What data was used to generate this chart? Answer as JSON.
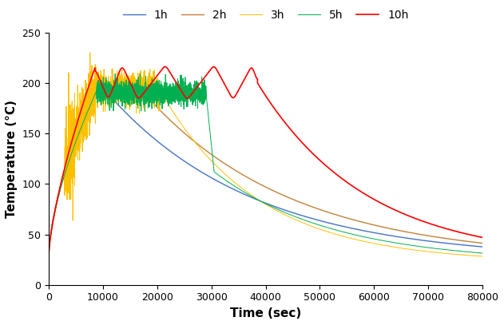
{
  "title": "",
  "xlabel": "Time (sec)",
  "ylabel": "Temperature (°C)",
  "xlim": [
    0,
    80000
  ],
  "ylim": [
    0,
    250
  ],
  "xticks": [
    0,
    10000,
    20000,
    30000,
    40000,
    50000,
    60000,
    70000,
    80000
  ],
  "yticks": [
    0,
    50,
    100,
    150,
    200,
    250
  ],
  "legend_labels": [
    "1h",
    "2h",
    "3h",
    "5h",
    "10h"
  ],
  "colors": {
    "1h": "#4472C4",
    "2h": "#C0823A",
    "3h": "#FFC000",
    "5h": "#00B050",
    "10h": "#FF0000"
  },
  "figsize": [
    6.31,
    4.07
  ],
  "dpi": 100,
  "end_values": {
    "1h_end_t": 80000,
    "1h_end_T": 42,
    "2h_end_t": 80000,
    "2h_end_T": 38,
    "3h_end_t": 80000,
    "3h_end_T": 28,
    "5h_end_t": 80000,
    "5h_end_T": 28,
    "10h_end_t": 80000,
    "10h_end_T": 47
  }
}
